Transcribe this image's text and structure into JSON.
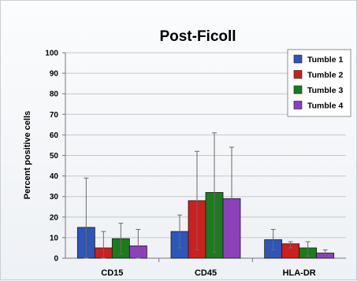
{
  "chart_data": {
    "type": "bar",
    "title": "Post-Ficoll",
    "xlabel": "",
    "ylabel": "Percent positive cells",
    "ylim": [
      0,
      100
    ],
    "yticks": [
      "0",
      "10",
      "20",
      "30",
      "40",
      "50",
      "60",
      "70",
      "80",
      "90",
      "100"
    ],
    "grid": true,
    "legend_position": "top-right",
    "categories": [
      "CD15",
      "CD45",
      "HLA-DR"
    ],
    "series": [
      {
        "name": "Tumble 1",
        "color": "#2e56b8",
        "values": [
          15,
          13,
          9
        ],
        "error_upper": [
          39,
          21,
          14
        ],
        "error_lower": [
          0,
          5,
          4
        ]
      },
      {
        "name": "Tumble 2",
        "color": "#cc1f1f",
        "values": [
          5,
          28,
          7
        ],
        "error_upper": [
          13,
          52,
          8
        ],
        "error_lower": [
          0,
          4,
          5
        ]
      },
      {
        "name": "Tumble 3",
        "color": "#1d7a1d",
        "values": [
          9.5,
          32,
          5
        ],
        "error_upper": [
          17,
          61,
          8
        ],
        "error_lower": [
          2,
          3,
          1
        ]
      },
      {
        "name": "Tumble 4",
        "color": "#8e3fbf",
        "values": [
          6,
          29,
          2.5
        ],
        "error_upper": [
          14,
          54,
          4
        ],
        "error_lower": [
          0,
          3,
          1
        ]
      }
    ]
  }
}
